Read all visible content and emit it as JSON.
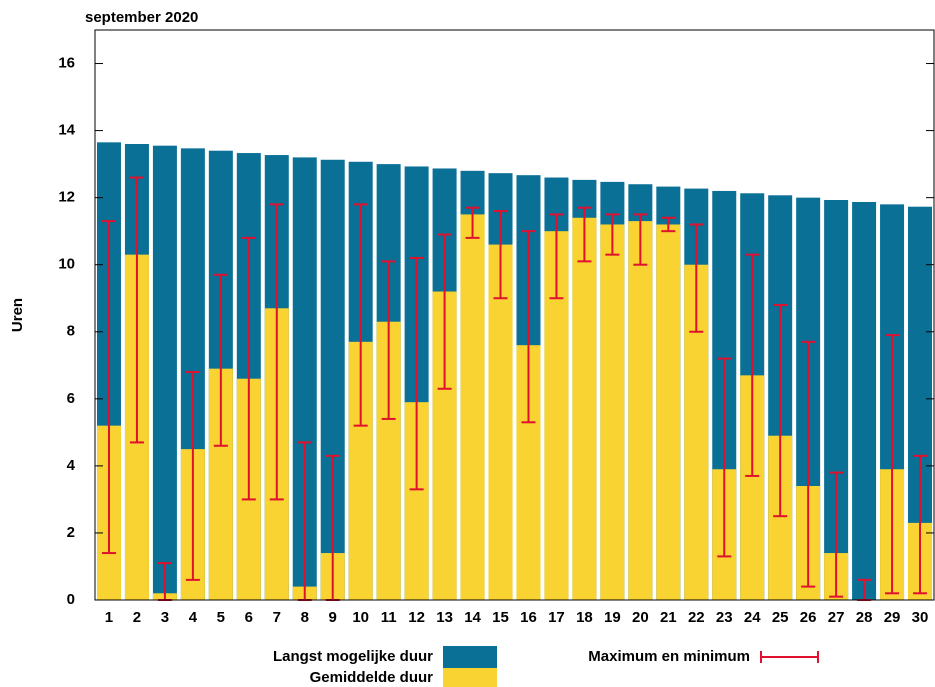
{
  "chart_data": {
    "type": "bar",
    "title": "september 2020",
    "y_label": "Uren",
    "categories": [
      "1",
      "2",
      "3",
      "4",
      "5",
      "6",
      "7",
      "8",
      "9",
      "10",
      "11",
      "12",
      "13",
      "14",
      "15",
      "16",
      "17",
      "18",
      "19",
      "20",
      "21",
      "22",
      "23",
      "24",
      "25",
      "26",
      "27",
      "28",
      "29",
      "30"
    ],
    "series": [
      {
        "name": "Langst mogelijke duur",
        "color": "#0a7096",
        "values": [
          13.65,
          13.6,
          13.55,
          13.47,
          13.4,
          13.33,
          13.27,
          13.2,
          13.13,
          13.07,
          13.0,
          12.93,
          12.87,
          12.8,
          12.73,
          12.67,
          12.6,
          12.53,
          12.47,
          12.4,
          12.33,
          12.27,
          12.2,
          12.13,
          12.07,
          12.0,
          11.93,
          11.87,
          11.8,
          11.73
        ]
      },
      {
        "name": "Gemiddelde duur",
        "color": "#f9d331",
        "values": [
          5.2,
          10.3,
          0.2,
          4.5,
          6.9,
          6.6,
          8.7,
          0.4,
          1.4,
          7.7,
          8.3,
          5.9,
          9.2,
          11.5,
          10.6,
          7.6,
          11.0,
          11.4,
          11.2,
          11.3,
          11.2,
          10.0,
          3.9,
          6.7,
          4.9,
          3.4,
          1.4,
          0,
          3.9,
          2.3
        ]
      }
    ],
    "error_bars": {
      "name": "Maximum en minimum",
      "color": "#e0102f",
      "max": [
        11.3,
        12.6,
        1.1,
        6.8,
        9.7,
        10.8,
        11.8,
        4.7,
        4.3,
        11.8,
        10.1,
        10.2,
        10.9,
        11.7,
        11.6,
        11.0,
        11.5,
        11.7,
        11.5,
        11.5,
        11.4,
        11.2,
        7.2,
        10.3,
        8.8,
        7.7,
        3.8,
        0.6,
        7.9,
        4.3
      ],
      "min": [
        1.4,
        4.7,
        0,
        0.6,
        4.6,
        3.0,
        3.0,
        0,
        0,
        5.2,
        5.4,
        3.3,
        6.3,
        10.8,
        9.0,
        5.3,
        9.0,
        10.1,
        10.3,
        10.0,
        11.0,
        8.0,
        1.3,
        3.7,
        2.5,
        0.4,
        0.1,
        0,
        0.2,
        0.2
      ]
    },
    "ylim": [
      0,
      17
    ],
    "yticks": [
      0,
      2,
      4,
      6,
      8,
      10,
      12,
      14,
      16
    ],
    "grid": false
  }
}
